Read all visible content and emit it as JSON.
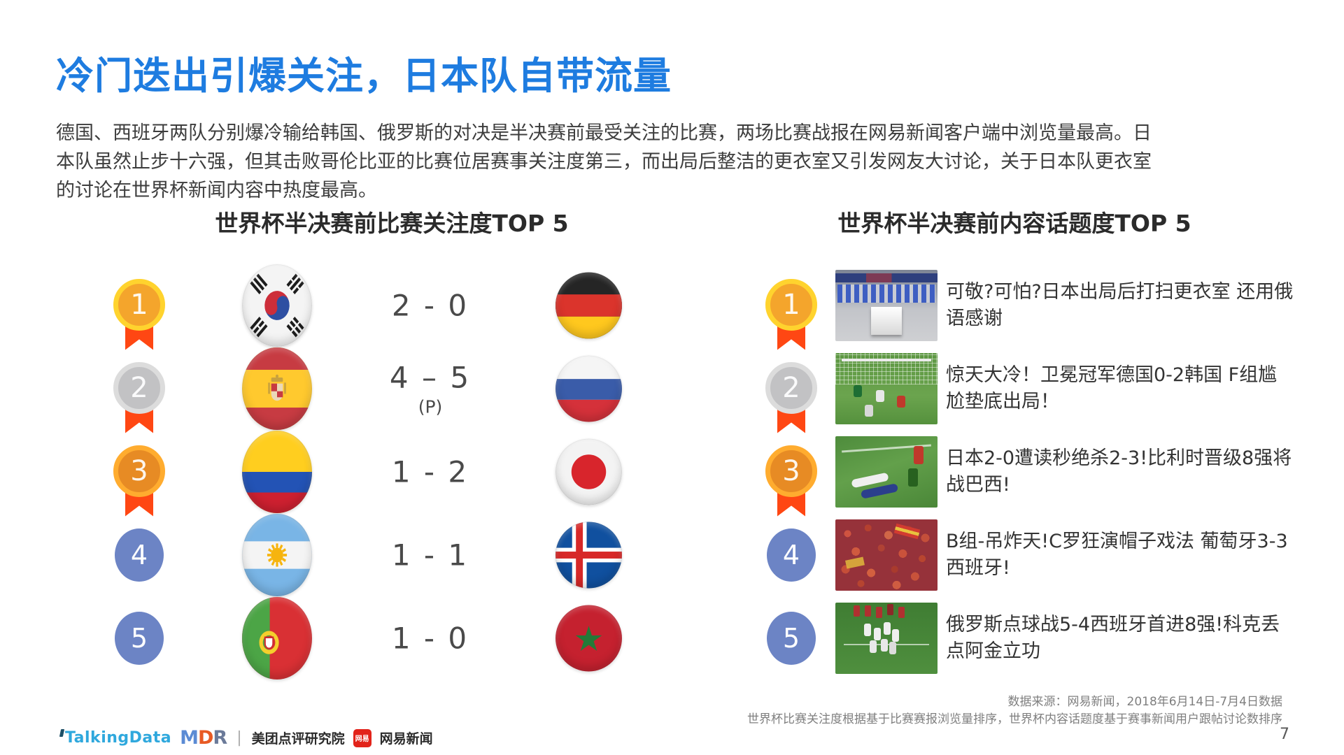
{
  "page": {
    "title": "冷门迭出引爆关注，日本队自带流量",
    "paragraph_lines": [
      "德国、西班牙两队分别爆冷输给韩国、俄罗斯的对决是半决赛前最受关注的比赛，两场比赛战报在网易新闻客户端中浏览量最高。日",
      "本队虽然止步十六强，但其击败哥伦比亚的比赛位居赛事关注度第三，而出局后整洁的更衣室又引发网友大讨论，关于日本队更衣室",
      "的讨论在世界杯新闻内容中热度最高。"
    ],
    "page_number": "7"
  },
  "left_section": {
    "title": "世界杯半决赛前比赛关注度TOP 5",
    "rows": [
      {
        "rank": "1",
        "medal": "gold",
        "home_flag": "south-korea",
        "score": "2 - 0",
        "score_note": "",
        "away_flag": "germany"
      },
      {
        "rank": "2",
        "medal": "silver",
        "home_flag": "spain",
        "score": "4 – 5",
        "score_note": "(P)",
        "away_flag": "russia"
      },
      {
        "rank": "3",
        "medal": "bronze",
        "home_flag": "colombia",
        "score": "1 - 2",
        "score_note": "",
        "away_flag": "japan"
      },
      {
        "rank": "4",
        "medal": "plain",
        "home_flag": "argentina",
        "score": "1 - 1",
        "score_note": "",
        "away_flag": "iceland"
      },
      {
        "rank": "5",
        "medal": "plain",
        "home_flag": "portugal",
        "score": "1 - 0",
        "score_note": "",
        "away_flag": "morocco"
      }
    ]
  },
  "right_section": {
    "title": "世界杯半决赛前内容话题度TOP 5",
    "rows": [
      {
        "rank": "1",
        "medal": "gold",
        "thumb": "locker-room",
        "headline": "可敬?可怕?日本出局后打扫更衣室 还用俄语感谢"
      },
      {
        "rank": "2",
        "medal": "silver",
        "thumb": "germany-korea-goal",
        "headline": "惊天大冷！卫冕冠军德国0-2韩国 F组尴尬垫底出局！"
      },
      {
        "rank": "3",
        "medal": "bronze",
        "thumb": "japan-belgium",
        "headline": "日本2-0遭读秒绝杀2-3!比利时晋级8强将战巴西!"
      },
      {
        "rank": "4",
        "medal": "plain",
        "thumb": "red-crowd",
        "headline": "B组-吊炸天!C罗狂演帽子戏法 葡萄牙3-3西班牙!"
      },
      {
        "rank": "5",
        "medal": "plain",
        "thumb": "penalty-celebration",
        "headline": "俄罗斯点球战5-4西班牙首进8强!科克丢点阿金立功"
      }
    ]
  },
  "footer": {
    "source_line1": "数据来源：网易新闻，2018年6月14日-7月4日数据",
    "source_line2": "世界杯比赛关注度根据基于比赛赛报浏览量排序，世界杯内容话题度基于赛事新闻用户跟帖讨论数排序",
    "logos": {
      "talkingdata": "TalkingData",
      "mdr_letters": [
        "M",
        "D",
        "R"
      ],
      "mdr_label": "美团点评研究院",
      "netease_badge": "网易",
      "netease_label": "网易新闻"
    }
  },
  "colors": {
    "title_blue": "#1E7CE0",
    "ribbon_red": "#FF4713",
    "gold": "#F4A52C",
    "silver": "#C2C2C4",
    "bronze": "#E78B24",
    "rank_circle_blue": "#6C84C5",
    "body_text": "#3D3D3D",
    "footer_gray": "#7F7F7F"
  }
}
